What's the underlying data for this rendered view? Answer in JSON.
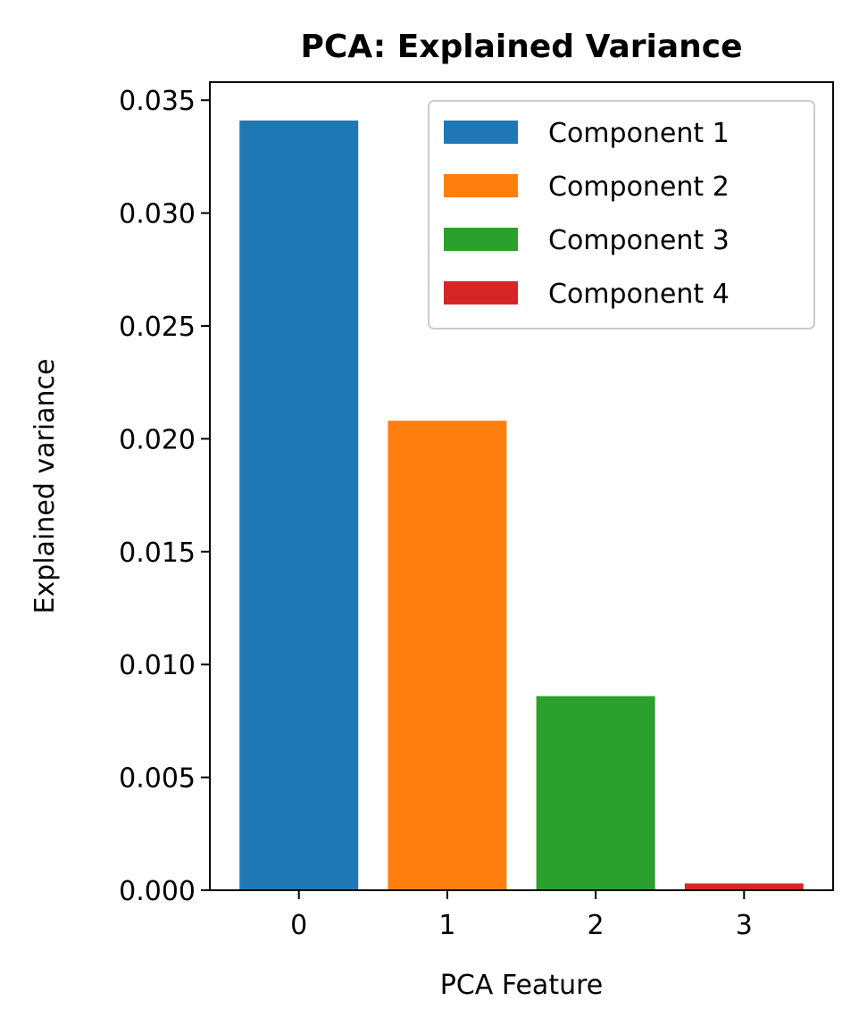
{
  "chart_data": {
    "type": "bar",
    "title": "PCA: Explained Variance",
    "xlabel": "PCA Feature",
    "ylabel": "Explained variance",
    "categories": [
      "0",
      "1",
      "2",
      "3"
    ],
    "x": [
      0,
      1,
      2,
      3
    ],
    "values": [
      0.0341,
      0.0208,
      0.0086,
      0.0003
    ],
    "series": [
      {
        "name": "Component 1",
        "x": 0,
        "value": 0.0341,
        "color": "#1f77b4"
      },
      {
        "name": "Component 2",
        "x": 1,
        "value": 0.0208,
        "color": "#ff7f0e"
      },
      {
        "name": "Component 3",
        "x": 2,
        "value": 0.0086,
        "color": "#2ca02c"
      },
      {
        "name": "Component 4",
        "x": 3,
        "value": 0.0003,
        "color": "#d62728"
      }
    ],
    "xlim": [
      -0.6,
      3.6
    ],
    "ylim": [
      0,
      0.0358
    ],
    "yticks": [
      0.0,
      0.005,
      0.01,
      0.015,
      0.02,
      0.025,
      0.03,
      0.035
    ],
    "ytick_labels": [
      "0.000",
      "0.005",
      "0.010",
      "0.015",
      "0.020",
      "0.025",
      "0.030",
      "0.035"
    ],
    "xticks": [
      0,
      1,
      2,
      3
    ],
    "xtick_labels": [
      "0",
      "1",
      "2",
      "3"
    ],
    "grid": false,
    "legend_position": "top-right"
  }
}
